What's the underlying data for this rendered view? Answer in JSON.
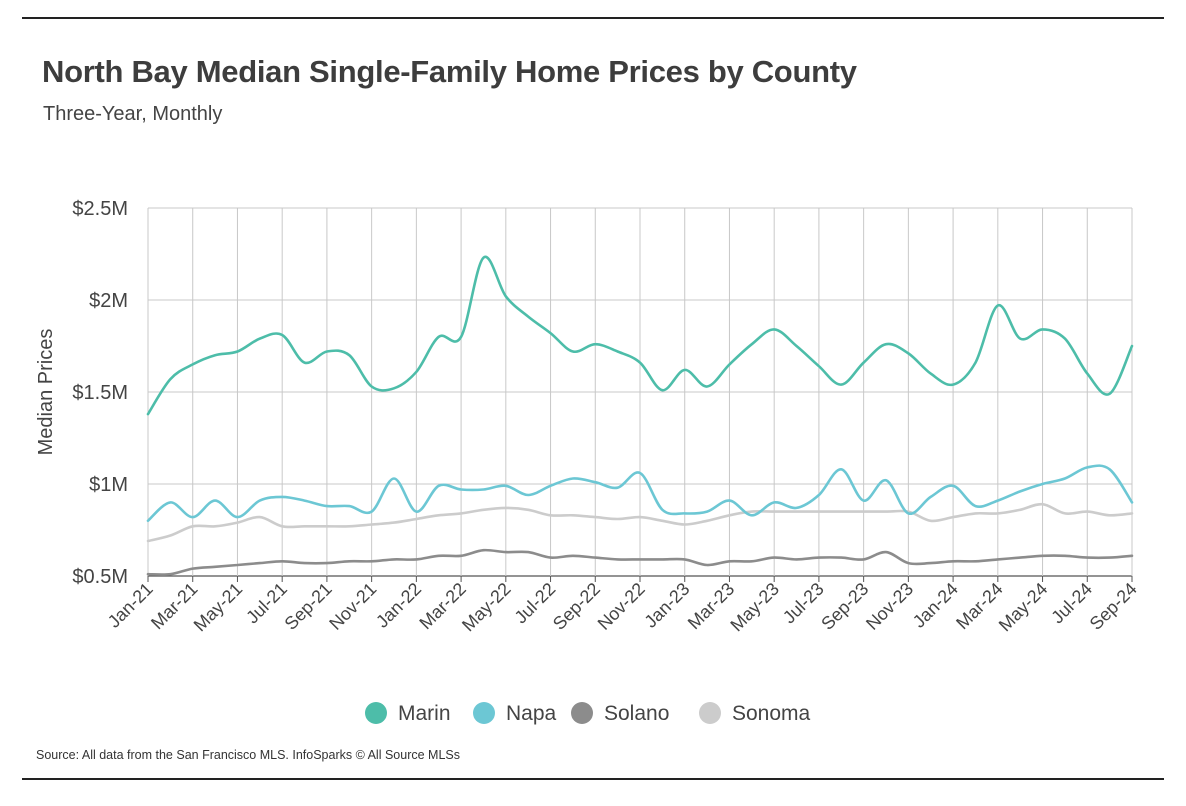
{
  "header": {
    "title": "North Bay Median Single-Family Home Prices by County",
    "subtitle": "Three-Year, Monthly"
  },
  "footer": {
    "source": "Source:  All data from the San Francisco MLS. InfoSparks © All Source MLSs"
  },
  "chart_data": {
    "type": "line",
    "title": "North Bay Median Single-Family Home Prices by County",
    "subtitle": "Three-Year, Monthly",
    "xlabel": "",
    "ylabel": "Median Prices",
    "ylim": [
      0.5,
      2.5
    ],
    "y_unit": "millions USD",
    "yticks": [
      {
        "value": 0.5,
        "label": "$0.5M"
      },
      {
        "value": 1.0,
        "label": "$1M"
      },
      {
        "value": 1.5,
        "label": "$1.5M"
      },
      {
        "value": 2.0,
        "label": "$2M"
      },
      {
        "value": 2.5,
        "label": "$2.5M"
      }
    ],
    "grid": true,
    "legend_position": "bottom",
    "x": [
      "Jan-21",
      "Feb-21",
      "Mar-21",
      "Apr-21",
      "May-21",
      "Jun-21",
      "Jul-21",
      "Aug-21",
      "Sep-21",
      "Oct-21",
      "Nov-21",
      "Dec-21",
      "Jan-22",
      "Feb-22",
      "Mar-22",
      "Apr-22",
      "May-22",
      "Jun-22",
      "Jul-22",
      "Aug-22",
      "Sep-22",
      "Oct-22",
      "Nov-22",
      "Dec-22",
      "Jan-23",
      "Feb-23",
      "Mar-23",
      "Apr-23",
      "May-23",
      "Jun-23",
      "Jul-23",
      "Aug-23",
      "Sep-23",
      "Oct-23",
      "Nov-23",
      "Dec-23",
      "Jan-24",
      "Feb-24",
      "Mar-24",
      "Apr-24",
      "May-24",
      "Jun-24",
      "Jul-24",
      "Aug-24",
      "Sep-24"
    ],
    "x_tick_labels": [
      "Jan-21",
      "Mar-21",
      "May-21",
      "Jul-21",
      "Sep-21",
      "Nov-21",
      "Jan-22",
      "Mar-22",
      "May-22",
      "Jul-22",
      "Sep-22",
      "Nov-22",
      "Jan-23",
      "Mar-23",
      "May-23",
      "Jul-23",
      "Sep-23",
      "Nov-23",
      "Jan-24",
      "Mar-24",
      "May-24",
      "Jul-24",
      "Sep-24"
    ],
    "series": [
      {
        "name": "Marin",
        "color": "#4dbda9",
        "values": [
          1.38,
          1.57,
          1.65,
          1.7,
          1.72,
          1.79,
          1.81,
          1.66,
          1.72,
          1.7,
          1.53,
          1.52,
          1.61,
          1.8,
          1.8,
          2.23,
          2.02,
          1.91,
          1.82,
          1.72,
          1.76,
          1.72,
          1.66,
          1.51,
          1.62,
          1.53,
          1.65,
          1.76,
          1.84,
          1.75,
          1.64,
          1.54,
          1.66,
          1.76,
          1.71,
          1.6,
          1.54,
          1.66,
          1.97,
          1.79,
          1.84,
          1.79,
          1.6,
          1.49,
          1.75
        ]
      },
      {
        "name": "Napa",
        "color": "#6cc7d4",
        "values": [
          0.8,
          0.9,
          0.82,
          0.91,
          0.82,
          0.91,
          0.93,
          0.91,
          0.88,
          0.88,
          0.85,
          1.03,
          0.85,
          0.99,
          0.97,
          0.97,
          0.99,
          0.94,
          0.99,
          1.03,
          1.01,
          0.98,
          1.06,
          0.86,
          0.84,
          0.85,
          0.91,
          0.83,
          0.9,
          0.87,
          0.94,
          1.08,
          0.91,
          1.02,
          0.84,
          0.93,
          0.99,
          0.88,
          0.91,
          0.96,
          1.0,
          1.03,
          1.09,
          1.08,
          0.9
        ]
      },
      {
        "name": "Solano",
        "color": "#8c8c8c",
        "values": [
          0.51,
          0.51,
          0.54,
          0.55,
          0.56,
          0.57,
          0.58,
          0.57,
          0.57,
          0.58,
          0.58,
          0.59,
          0.59,
          0.61,
          0.61,
          0.64,
          0.63,
          0.63,
          0.6,
          0.61,
          0.6,
          0.59,
          0.59,
          0.59,
          0.59,
          0.56,
          0.58,
          0.58,
          0.6,
          0.59,
          0.6,
          0.6,
          0.59,
          0.63,
          0.57,
          0.57,
          0.58,
          0.58,
          0.59,
          0.6,
          0.61,
          0.61,
          0.6,
          0.6,
          0.61
        ]
      },
      {
        "name": "Sonoma",
        "color": "#cccccc",
        "values": [
          0.69,
          0.72,
          0.77,
          0.77,
          0.79,
          0.82,
          0.77,
          0.77,
          0.77,
          0.77,
          0.78,
          0.79,
          0.81,
          0.83,
          0.84,
          0.86,
          0.87,
          0.86,
          0.83,
          0.83,
          0.82,
          0.81,
          0.82,
          0.8,
          0.78,
          0.8,
          0.83,
          0.85,
          0.85,
          0.85,
          0.85,
          0.85,
          0.85,
          0.85,
          0.85,
          0.8,
          0.82,
          0.84,
          0.84,
          0.86,
          0.89,
          0.84,
          0.85,
          0.83,
          0.84
        ]
      }
    ]
  }
}
